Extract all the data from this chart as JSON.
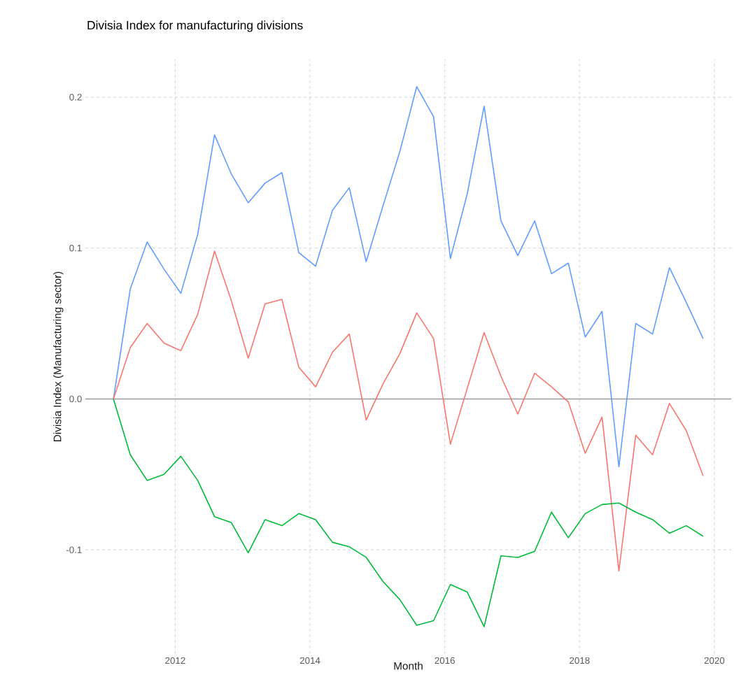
{
  "chart_data": {
    "type": "line",
    "title": "Divisia Index for manufacturing divisions",
    "xlabel": "Month",
    "ylabel": "Divisia Index (Manufacturing sector)",
    "x": [
      "2011-02",
      "2011-05",
      "2011-08",
      "2011-11",
      "2012-02",
      "2012-05",
      "2012-08",
      "2012-11",
      "2013-02",
      "2013-05",
      "2013-08",
      "2013-11",
      "2014-02",
      "2014-05",
      "2014-08",
      "2014-11",
      "2015-02",
      "2015-05",
      "2015-08",
      "2015-11",
      "2016-02",
      "2016-05",
      "2016-08",
      "2016-11",
      "2017-02",
      "2017-05",
      "2017-08",
      "2017-11",
      "2018-02",
      "2018-05",
      "2018-08",
      "2018-11",
      "2019-02",
      "2019-05",
      "2019-08",
      "2019-11"
    ],
    "series": [
      {
        "color": "#619cff",
        "values": [
          0,
          0.073,
          0.104,
          0.086,
          0.07,
          0.109,
          0.175,
          0.149,
          0.13,
          0.143,
          0.15,
          0.097,
          0.088,
          0.125,
          0.14,
          0.091,
          0.128,
          0.164,
          0.207,
          0.187,
          0.093,
          0.136,
          0.194,
          0.118,
          0.095,
          0.118,
          0.083,
          0.09,
          0.041,
          0.058,
          -0.045,
          0.05,
          0.043,
          0.087,
          0.064,
          0.04
        ]
      },
      {
        "color": "#f8766d",
        "values": [
          0,
          0.034,
          0.05,
          0.037,
          0.032,
          0.056,
          0.098,
          0.065,
          0.027,
          0.063,
          0.066,
          0.021,
          0.008,
          0.031,
          0.043,
          -0.014,
          0.01,
          0.03,
          0.057,
          0.04,
          -0.03,
          0.007,
          0.044,
          0.015,
          -0.01,
          0.017,
          0.008,
          -0.002,
          -0.036,
          -0.012,
          -0.114,
          -0.024,
          -0.037,
          -0.003,
          -0.021,
          -0.051
        ]
      },
      {
        "color": "#00ba38",
        "values": [
          0,
          -0.037,
          -0.054,
          -0.05,
          -0.038,
          -0.054,
          -0.078,
          -0.082,
          -0.102,
          -0.08,
          -0.084,
          -0.076,
          -0.08,
          -0.095,
          -0.098,
          -0.105,
          -0.121,
          -0.133,
          -0.15,
          -0.147,
          -0.123,
          -0.128,
          -0.151,
          -0.104,
          -0.105,
          -0.101,
          -0.075,
          -0.092,
          -0.076,
          -0.07,
          -0.069,
          -0.075,
          -0.08,
          -0.089,
          -0.084,
          -0.091
        ]
      }
    ],
    "xlim": [
      "2010-09",
      "2020-04"
    ],
    "xticks": [
      "2012",
      "2014",
      "2016",
      "2018",
      "2020"
    ],
    "ylim": [
      -0.169,
      0.225
    ],
    "yticks": [
      {
        "value": -0.1,
        "label": "-0.1"
      },
      {
        "value": 0,
        "label": "0.0"
      },
      0.1,
      0.2
    ],
    "ref_lines": [
      {
        "axis": "y",
        "value": 0,
        "color": "#999999"
      }
    ],
    "grid": true,
    "line_style": "solid",
    "marker": "none"
  }
}
